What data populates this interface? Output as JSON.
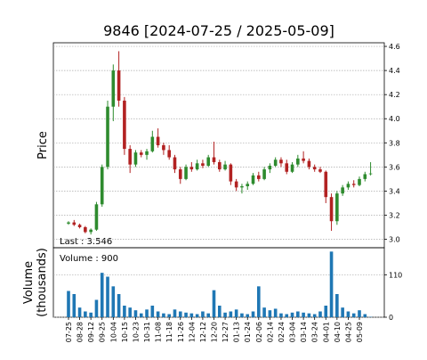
{
  "chart_data": [
    {
      "type": "candlestick",
      "title": "9846   [2024-07-25 / 2025-05-09]",
      "ylabel": "Price",
      "annotation": "Last : 3.546",
      "up_color": "#2e8b2e",
      "down_color": "#b22222",
      "open": [
        3.13,
        3.14,
        3.12,
        3.1,
        3.06,
        3.08,
        3.29,
        3.6,
        4.1,
        4.4,
        4.15,
        3.75,
        3.62,
        3.72,
        3.7,
        3.73,
        3.85,
        3.78,
        3.74,
        3.68,
        3.58,
        3.5,
        3.6,
        3.58,
        3.63,
        3.61,
        3.68,
        3.64,
        3.58,
        3.62,
        3.48,
        3.43,
        3.44,
        3.46,
        3.53,
        3.5,
        3.58,
        3.61,
        3.66,
        3.63,
        3.56,
        3.62,
        3.67,
        3.65,
        3.6,
        3.58,
        3.56,
        3.35,
        3.15,
        3.38,
        3.43,
        3.46,
        3.45,
        3.5,
        3.54
      ],
      "high": [
        3.15,
        3.16,
        3.13,
        3.11,
        3.09,
        3.31,
        3.62,
        4.15,
        4.45,
        4.56,
        4.18,
        3.78,
        3.74,
        3.74,
        3.75,
        3.9,
        3.92,
        3.8,
        3.78,
        3.7,
        3.6,
        3.62,
        3.64,
        3.66,
        3.66,
        3.7,
        3.81,
        3.66,
        3.65,
        3.63,
        3.5,
        3.46,
        3.48,
        3.55,
        3.56,
        3.6,
        3.63,
        3.68,
        3.68,
        3.66,
        3.64,
        3.7,
        3.73,
        3.67,
        3.62,
        3.6,
        3.57,
        3.38,
        3.4,
        3.45,
        3.48,
        3.49,
        3.52,
        3.56,
        3.64
      ],
      "low": [
        3.12,
        3.11,
        3.09,
        3.05,
        3.04,
        3.07,
        3.27,
        3.58,
        3.98,
        4.1,
        3.7,
        3.55,
        3.6,
        3.68,
        3.66,
        3.72,
        3.76,
        3.7,
        3.66,
        3.55,
        3.46,
        3.49,
        3.56,
        3.57,
        3.59,
        3.6,
        3.62,
        3.56,
        3.57,
        3.45,
        3.4,
        3.38,
        3.41,
        3.45,
        3.48,
        3.49,
        3.55,
        3.6,
        3.6,
        3.54,
        3.55,
        3.6,
        3.63,
        3.58,
        3.56,
        3.55,
        3.3,
        3.07,
        3.12,
        3.36,
        3.41,
        3.43,
        3.44,
        3.48,
        3.53
      ],
      "close": [
        3.14,
        3.12,
        3.1,
        3.06,
        3.08,
        3.29,
        3.6,
        4.1,
        4.4,
        4.15,
        3.75,
        3.62,
        3.72,
        3.7,
        3.73,
        3.85,
        3.78,
        3.74,
        3.68,
        3.58,
        3.5,
        3.6,
        3.58,
        3.63,
        3.61,
        3.68,
        3.64,
        3.58,
        3.62,
        3.48,
        3.43,
        3.44,
        3.46,
        3.53,
        3.5,
        3.58,
        3.61,
        3.66,
        3.63,
        3.56,
        3.62,
        3.67,
        3.65,
        3.6,
        3.58,
        3.56,
        3.35,
        3.15,
        3.38,
        3.43,
        3.46,
        3.45,
        3.5,
        3.54,
        3.546
      ],
      "ylim": [
        2.93,
        4.63
      ],
      "yticks": [
        {
          "value": 3.0,
          "label": "3.0"
        },
        3.2,
        3.4,
        3.6,
        3.8,
        {
          "value": 4.0,
          "label": "4.0"
        },
        4.2,
        4.4,
        4.6
      ],
      "grid": true
    },
    {
      "type": "bar",
      "ylabel": [
        "Volume",
        "(thousands)"
      ],
      "annotation": "Volume : 900",
      "color": "#1f77b4",
      "categories": [
        "07-25",
        null,
        "08-28",
        null,
        "09-12",
        null,
        "09-25",
        null,
        "10-04",
        null,
        "10-15",
        null,
        "10-23",
        null,
        "10-31",
        null,
        "11-08",
        null,
        "11-18",
        null,
        "11-26",
        null,
        "12-04",
        null,
        "12-12",
        null,
        "12-20",
        null,
        "12-27",
        null,
        "01-13",
        null,
        "01-24",
        null,
        "02-06",
        null,
        "02-14",
        null,
        "02-24",
        null,
        "03-04",
        null,
        "03-14",
        null,
        "03-24",
        null,
        "04-01",
        null,
        "04-10",
        null,
        "04-25",
        null,
        "05-09",
        null,
        null
      ],
      "values": [
        68,
        60,
        25,
        15,
        12,
        45,
        115,
        105,
        80,
        60,
        30,
        25,
        18,
        10,
        20,
        30,
        15,
        10,
        8,
        20,
        15,
        12,
        10,
        8,
        15,
        10,
        70,
        30,
        12,
        15,
        20,
        10,
        8,
        15,
        80,
        25,
        18,
        22,
        10,
        8,
        12,
        15,
        12,
        10,
        8,
        15,
        30,
        170,
        60,
        25,
        15,
        10,
        18,
        8,
        0.9
      ],
      "ylim": [
        0,
        180
      ],
      "yticks": [
        0,
        110
      ],
      "grid": true
    }
  ]
}
